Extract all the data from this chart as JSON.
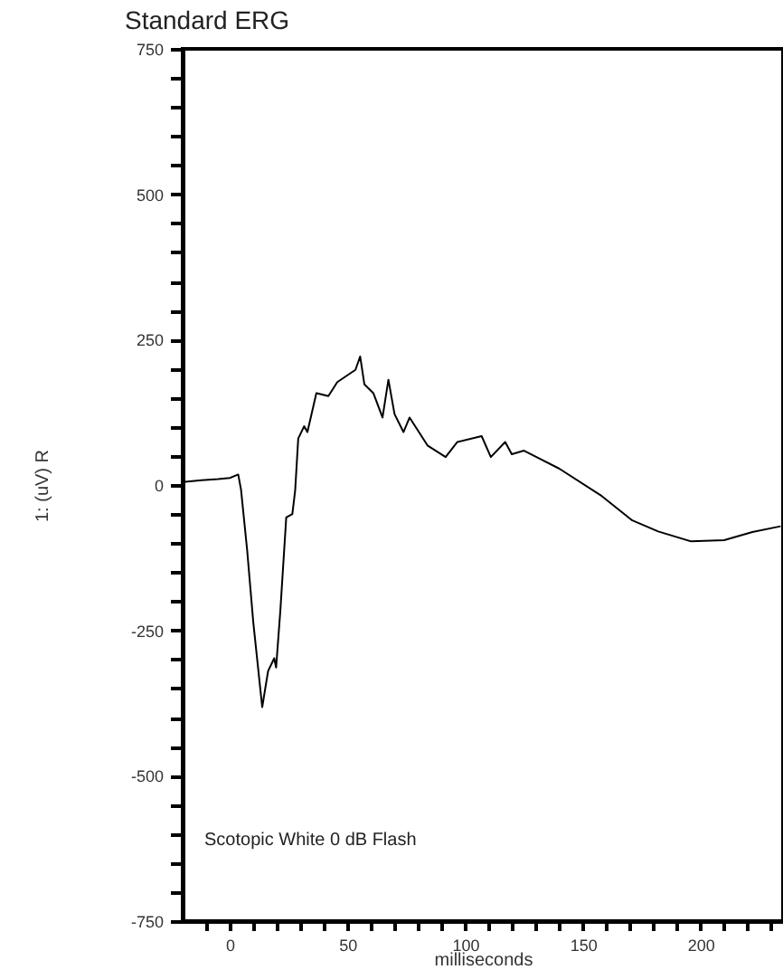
{
  "chart_data": {
    "type": "line",
    "title": "Standard ERG",
    "xlabel": "milliseconds",
    "ylabel": "1: (uV) R",
    "annotations": [
      "Scotopic  White 0 dB Flash"
    ],
    "xlim": [
      -20,
      235
    ],
    "ylim": [
      -750,
      750
    ],
    "xticks": [
      {
        "value": -10,
        "label": null
      },
      0,
      {
        "value": 10,
        "label": null
      },
      {
        "value": 20,
        "label": null
      },
      {
        "value": 30,
        "label": null
      },
      {
        "value": 40,
        "label": null
      },
      50,
      {
        "value": 60,
        "label": null
      },
      {
        "value": 70,
        "label": null
      },
      {
        "value": 80,
        "label": null
      },
      {
        "value": 90,
        "label": null
      },
      100,
      {
        "value": 110,
        "label": null
      },
      {
        "value": 120,
        "label": null
      },
      {
        "value": 130,
        "label": null
      },
      {
        "value": 140,
        "label": null
      },
      150,
      {
        "value": 160,
        "label": null
      },
      {
        "value": 170,
        "label": null
      },
      {
        "value": 180,
        "label": null
      },
      {
        "value": 190,
        "label": null
      },
      200,
      {
        "value": 210,
        "label": null
      },
      {
        "value": 220,
        "label": null
      },
      {
        "value": 230,
        "label": null
      }
    ],
    "yticks": [
      -750,
      {
        "value": -700,
        "label": null
      },
      {
        "value": -650,
        "label": null
      },
      {
        "value": -600,
        "label": null
      },
      {
        "value": -550,
        "label": null
      },
      -500,
      {
        "value": -450,
        "label": null
      },
      {
        "value": -400,
        "label": null
      },
      {
        "value": -350,
        "label": null
      },
      {
        "value": -300,
        "label": null
      },
      -250,
      {
        "value": -200,
        "label": null
      },
      {
        "value": -150,
        "label": null
      },
      {
        "value": -100,
        "label": null
      },
      {
        "value": -50,
        "label": null
      },
      0,
      {
        "value": 50,
        "label": null
      },
      {
        "value": 100,
        "label": null
      },
      {
        "value": 150,
        "label": null
      },
      {
        "value": 200,
        "label": null
      },
      250,
      {
        "value": 300,
        "label": null
      },
      {
        "value": 350,
        "label": null
      },
      {
        "value": 400,
        "label": null
      },
      {
        "value": 450,
        "label": null
      },
      500,
      {
        "value": 550,
        "label": null
      },
      {
        "value": 600,
        "label": null
      },
      {
        "value": 650,
        "label": null
      },
      {
        "value": 700,
        "label": null
      },
      750
    ],
    "grid": false,
    "line_style": "solid",
    "marker": "none",
    "series": [
      {
        "color": "#000000",
        "x": [
          -20,
          -12,
          -5,
          0,
          3.6,
          4.8,
          7.4,
          10,
          13.8,
          16.3,
          18.9,
          19.7,
          21.5,
          24,
          26.6,
          27.8,
          29.1,
          31.6,
          33,
          36.8,
          41.9,
          45.7,
          53.4,
          55.4,
          57.2,
          61,
          64.9,
          67.4,
          70,
          73.8,
          76.4,
          84,
          91.7,
          96.7,
          107,
          110.9,
          117,
          119.8,
          125,
          140,
          158,
          171,
          182,
          196,
          210,
          222,
          234
        ],
        "values": [
          5,
          8,
          10,
          12,
          18,
          -8,
          -112,
          -236,
          -382,
          -320,
          -298,
          -314,
          -216,
          -56,
          -50,
          -9,
          80,
          101,
          91,
          158,
          153,
          177,
          198,
          221,
          173,
          158,
          116,
          181,
          122,
          91,
          116,
          68,
          48,
          74,
          84,
          48,
          74,
          53,
          59,
          28,
          -19,
          -61,
          -80,
          -97,
          -95,
          -81,
          -71
        ]
      }
    ]
  }
}
